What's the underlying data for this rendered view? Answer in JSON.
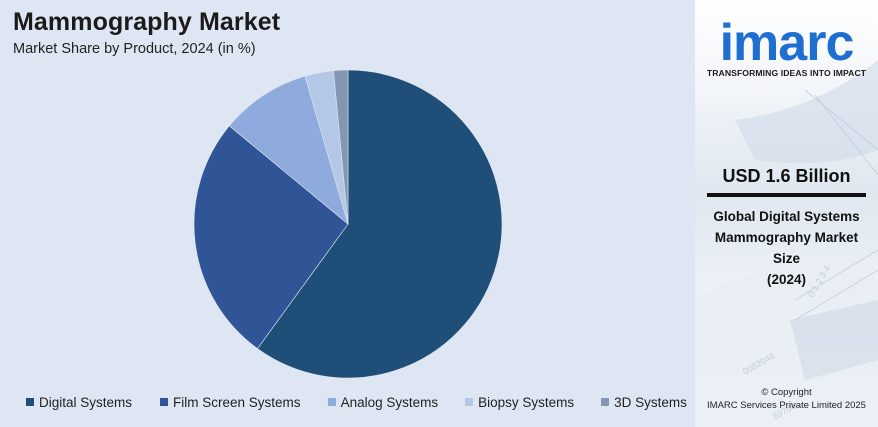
{
  "header": {
    "title": "Mammography Market",
    "subtitle": "Market Share by Product, 2024 (in %)"
  },
  "chart_data": {
    "type": "pie",
    "title": "Mammography Market",
    "subtitle": "Market Share by Product, 2024 (in %)",
    "categories": [
      "Digital Systems",
      "Film Screen Systems",
      "Analog Systems",
      "Biopsy Systems",
      "3D Systems"
    ],
    "values": [
      60.0,
      26.0,
      9.5,
      3.0,
      1.5
    ],
    "colors": [
      "#1f4e79",
      "#2f5597",
      "#8faadc",
      "#b4c7e7",
      "#8497b0"
    ],
    "start_angle_deg": 0,
    "direction": "clockwise",
    "legend_position": "bottom"
  },
  "legend": {
    "items": [
      {
        "label": "Digital Systems",
        "color": "#1f4e79"
      },
      {
        "label": "Film Screen Systems",
        "color": "#2f5597"
      },
      {
        "label": "Analog Systems",
        "color": "#8faadc"
      },
      {
        "label": "Biopsy Systems",
        "color": "#b4c7e7"
      },
      {
        "label": "3D Systems",
        "color": "#8497b0"
      }
    ]
  },
  "sidebar": {
    "logo_text": "imarc",
    "logo_color": "#1f6fd1",
    "tagline": "TRANSFORMING IDEAS INTO IMPACT",
    "market_value": "USD 1.6 Billion",
    "description_lines": [
      "Global Digital Systems",
      "Mammography Market",
      "Size",
      "(2024)"
    ],
    "copyright_line1": "© Copyright",
    "copyright_line2": "IMARC Services Private Limited 2025"
  }
}
